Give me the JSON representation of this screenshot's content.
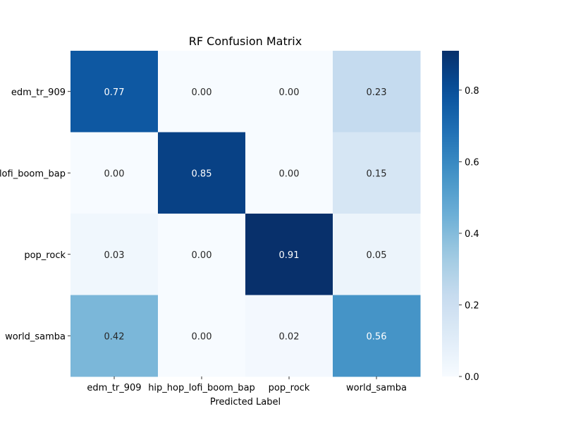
{
  "chart_data": {
    "type": "heatmap",
    "title": "RF Confusion Matrix",
    "xlabel": "Predicted Label",
    "ylabel": "",
    "x_categories": [
      "edm_tr_909",
      "hip_hop_lofi_boom_bap",
      "pop_rock",
      "world_samba"
    ],
    "y_categories": [
      "edm_tr_909",
      "hip_hop_lofi_boom_bap",
      "pop_rock",
      "world_samba"
    ],
    "values": [
      [
        0.77,
        0.0,
        0.0,
        0.23
      ],
      [
        0.0,
        0.85,
        0.0,
        0.15
      ],
      [
        0.03,
        0.0,
        0.91,
        0.05
      ],
      [
        0.42,
        0.0,
        0.02,
        0.56
      ]
    ],
    "annotations": [
      [
        "0.77",
        "0.00",
        "0.00",
        "0.23"
      ],
      [
        "0.00",
        "0.85",
        "0.00",
        "0.15"
      ],
      [
        "0.03",
        "0.00",
        "0.91",
        "0.05"
      ],
      [
        "0.42",
        "0.00",
        "0.02",
        "0.56"
      ]
    ],
    "colormap": "Blues",
    "vmin": 0.0,
    "vmax": 0.91,
    "colorbar_ticks": [
      0.0,
      0.2,
      0.4,
      0.6,
      0.8
    ],
    "colorbar_tick_labels": [
      "0.0",
      "0.2",
      "0.4",
      "0.6",
      "0.8"
    ]
  }
}
